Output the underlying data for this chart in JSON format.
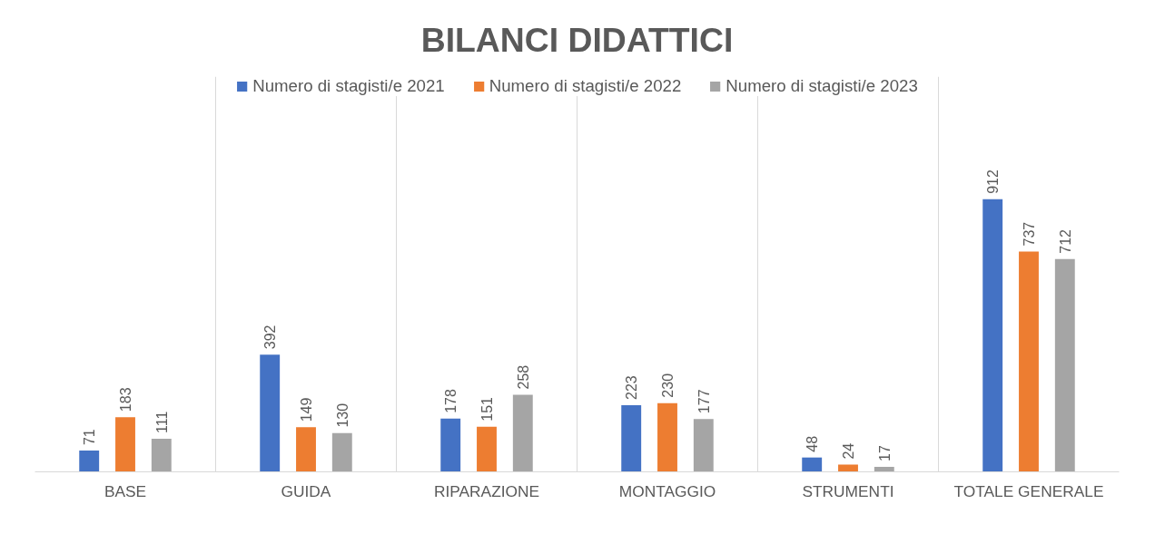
{
  "chart_data": {
    "type": "bar",
    "title": "BILANCI DIDATTICI",
    "categories": [
      "BASE",
      "GUIDA",
      "RIPARAZIONE",
      "MONTAGGIO",
      "STRUMENTI",
      "TOTALE GENERALE"
    ],
    "series": [
      {
        "name": "Numero di stagisti/e 2021",
        "color": "#4472c4",
        "values": [
          71,
          392,
          178,
          223,
          48,
          912
        ]
      },
      {
        "name": "Numero di stagisti/e 2022",
        "color": "#ed7d31",
        "values": [
          183,
          149,
          151,
          230,
          24,
          737
        ]
      },
      {
        "name": "Numero di stagisti/e 2023",
        "color": "#a5a5a5",
        "values": [
          111,
          130,
          258,
          177,
          17,
          712
        ]
      }
    ],
    "data_labels": true,
    "grid": "x",
    "legend": "top"
  }
}
